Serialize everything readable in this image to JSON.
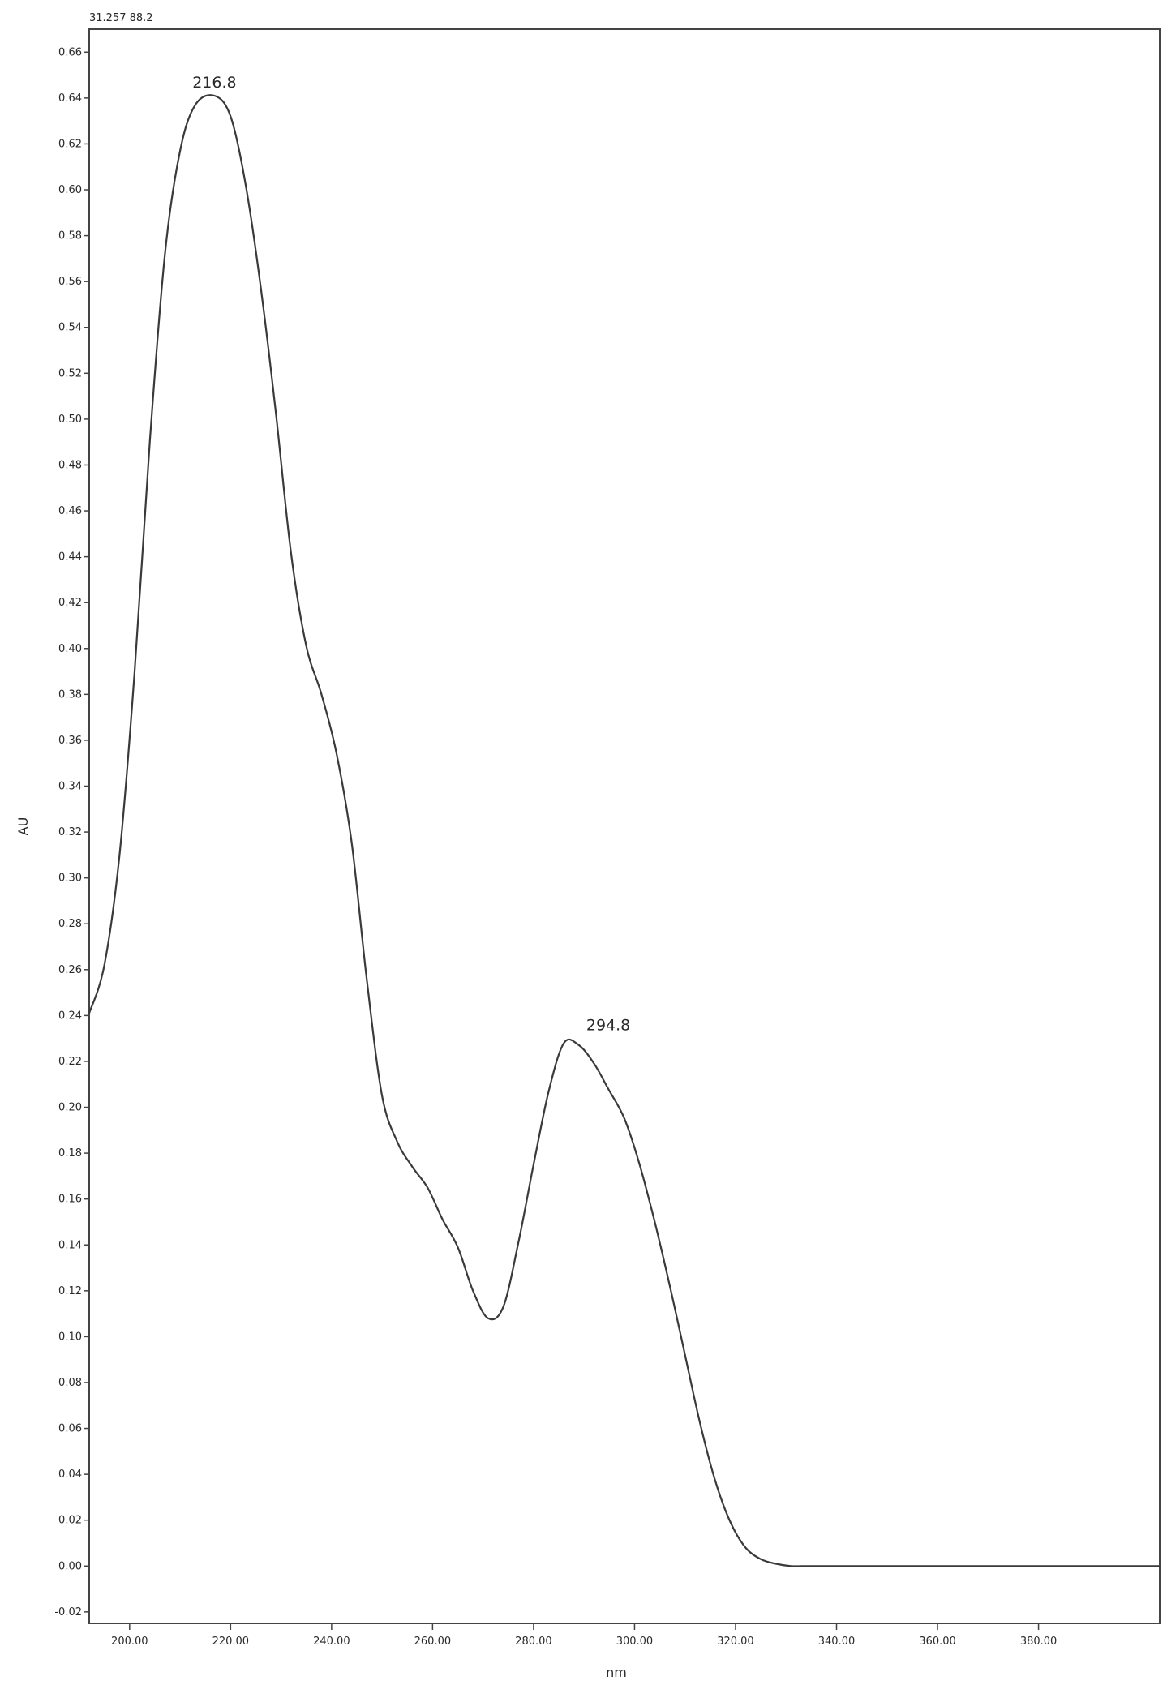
{
  "chart_data": {
    "type": "line",
    "header_label": "31.257 88.2",
    "title": "",
    "xlabel": "nm",
    "ylabel": "AU",
    "xlim": [
      192,
      404
    ],
    "ylim": [
      -0.025,
      0.67
    ],
    "x_ticks": [
      200,
      220,
      240,
      260,
      280,
      300,
      320,
      340,
      360,
      380
    ],
    "x_tick_labels": [
      "200.00",
      "220.00",
      "240.00",
      "260.00",
      "280.00",
      "300.00",
      "320.00",
      "340.00",
      "360.00",
      "380.00"
    ],
    "y_ticks": [
      -0.02,
      0.0,
      0.02,
      0.04,
      0.06,
      0.08,
      0.1,
      0.12,
      0.14,
      0.16,
      0.18,
      0.2,
      0.22,
      0.24,
      0.26,
      0.28,
      0.3,
      0.32,
      0.34,
      0.36,
      0.38,
      0.4,
      0.42,
      0.44,
      0.46,
      0.48,
      0.5,
      0.52,
      0.54,
      0.56,
      0.58,
      0.6,
      0.62,
      0.64,
      0.66
    ],
    "y_tick_labels": [
      "-0.02",
      "0.00",
      "0.02",
      "0.04",
      "0.06",
      "0.08",
      "0.10",
      "0.12",
      "0.14",
      "0.16",
      "0.18",
      "0.20",
      "0.22",
      "0.24",
      "0.26",
      "0.28",
      "0.30",
      "0.32",
      "0.34",
      "0.36",
      "0.38",
      "0.40",
      "0.42",
      "0.44",
      "0.46",
      "0.48",
      "0.50",
      "0.52",
      "0.54",
      "0.56",
      "0.58",
      "0.60",
      "0.62",
      "0.64",
      "0.66"
    ],
    "grid": false,
    "series": [
      {
        "color": "#3a3a3a",
        "x": [
          192,
          195,
          198,
          201,
          204,
          207,
          210,
          213,
          216.8,
          220,
          223,
          226,
          229,
          232,
          235,
          238,
          241,
          244,
          247,
          250,
          253,
          256,
          259,
          262,
          265,
          268,
          271,
          274,
          277,
          280,
          283,
          286,
          289,
          292,
          294.8,
          298,
          301,
          304,
          307,
          310,
          313,
          316,
          319,
          322,
          325,
          328,
          331,
          334,
          337,
          340,
          344,
          350,
          360,
          370,
          380,
          390,
          400,
          404
        ],
        "y": [
          0.241,
          0.262,
          0.31,
          0.39,
          0.49,
          0.572,
          0.617,
          0.637,
          0.641,
          0.632,
          0.602,
          0.557,
          0.502,
          0.441,
          0.401,
          0.38,
          0.354,
          0.315,
          0.255,
          0.205,
          0.185,
          0.174,
          0.165,
          0.151,
          0.139,
          0.12,
          0.108,
          0.113,
          0.141,
          0.175,
          0.207,
          0.228,
          0.227,
          0.219,
          0.208,
          0.195,
          0.175,
          0.15,
          0.122,
          0.092,
          0.062,
          0.037,
          0.019,
          0.008,
          0.003,
          0.001,
          0.0,
          0.0,
          0.0,
          0.0,
          0.0,
          0.0,
          0.0,
          0.0,
          0.0,
          0.0,
          0.0,
          0.0
        ]
      }
    ],
    "annotations": [
      {
        "text": "216.8",
        "x": 216.8,
        "y": 0.641
      },
      {
        "text": "294.8",
        "x": 294.8,
        "y": 0.23
      }
    ]
  }
}
